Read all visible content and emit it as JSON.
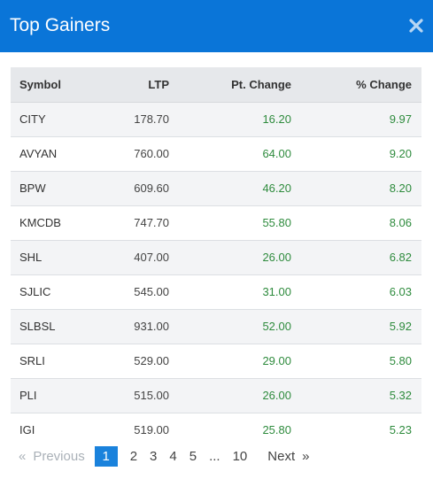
{
  "title": "Top Gainers",
  "colors": {
    "header": "#0a75d8",
    "positive": "#2e8b3d",
    "active_page": "#1a82dc"
  },
  "close_icon": "close-icon",
  "table": {
    "headers": [
      "Symbol",
      "LTP",
      "Pt. Change",
      "% Change"
    ],
    "rows": [
      [
        "CITY",
        "178.70",
        "16.20",
        "9.97"
      ],
      [
        "AVYAN",
        "760.00",
        "64.00",
        "9.20"
      ],
      [
        "BPW",
        "609.60",
        "46.20",
        "8.20"
      ],
      [
        "KMCDB",
        "747.70",
        "55.80",
        "8.06"
      ],
      [
        "SHL",
        "407.00",
        "26.00",
        "6.82"
      ],
      [
        "SJLIC",
        "545.00",
        "31.00",
        "6.03"
      ],
      [
        "SLBSL",
        "931.00",
        "52.00",
        "5.92"
      ],
      [
        "SRLI",
        "529.00",
        "29.00",
        "5.80"
      ],
      [
        "PLI",
        "515.00",
        "26.00",
        "5.32"
      ],
      [
        "IGI",
        "519.00",
        "25.80",
        "5.23"
      ]
    ]
  },
  "pagination": {
    "prev_arrow": "«",
    "prev_label": "Previous",
    "pages": [
      "1",
      "2",
      "3",
      "4",
      "5",
      "...",
      "10"
    ],
    "active": "1",
    "next_label": "Next",
    "next_arrow": "»"
  }
}
